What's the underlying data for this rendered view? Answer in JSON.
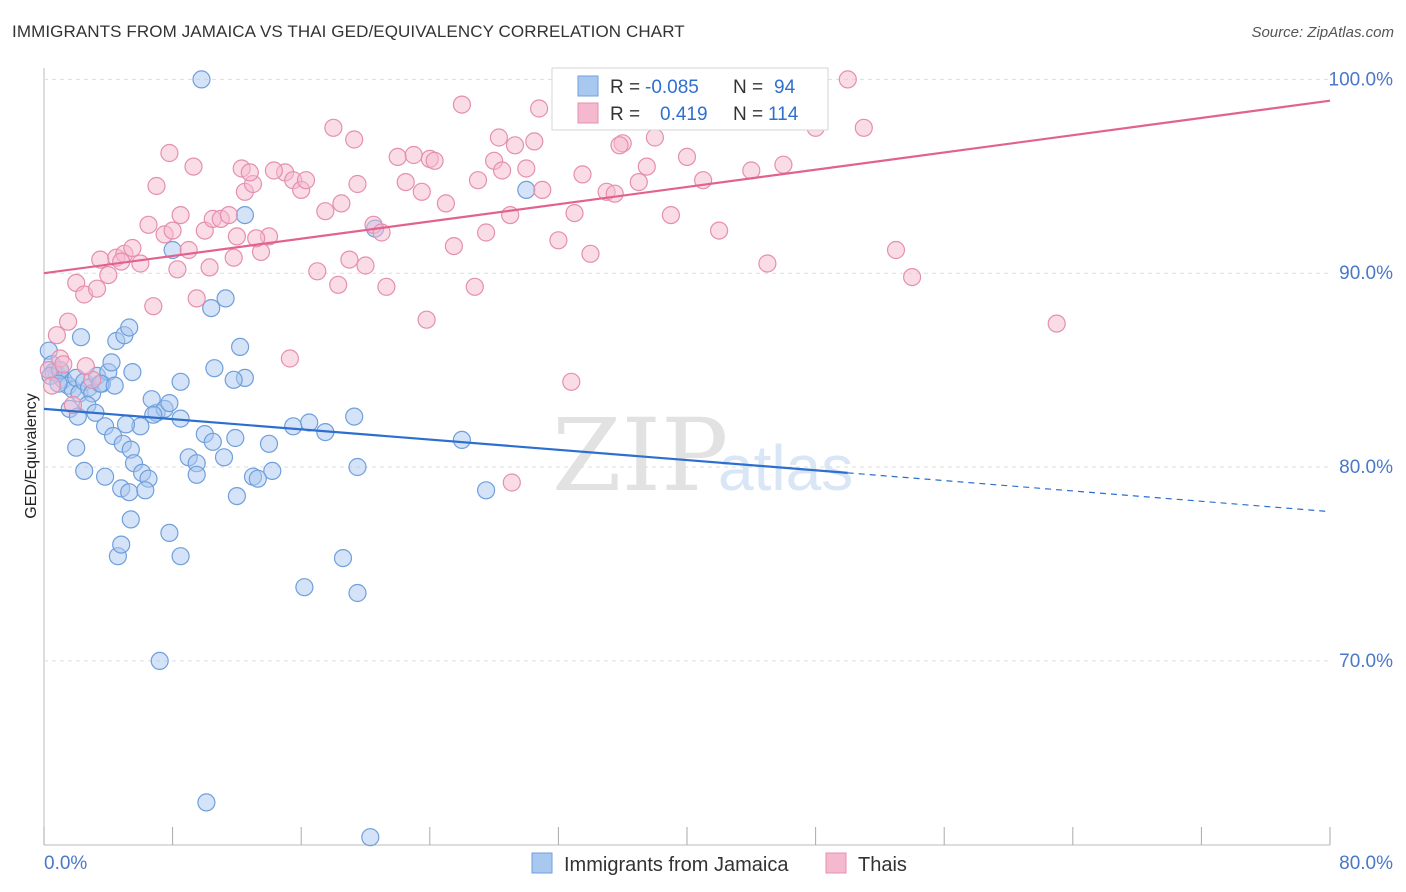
{
  "header": {
    "title": "IMMIGRANTS FROM JAMAICA VS THAI GED/EQUIVALENCY CORRELATION CHART",
    "source": "Source: ZipAtlas.com"
  },
  "colors": {
    "blue_fill": "#a9c8f0",
    "blue_stroke": "#6f9fdc",
    "blue_line": "#2d6fce",
    "pink_fill": "#f5b9cf",
    "pink_stroke": "#e58fae",
    "pink_line": "#e2628f",
    "tick_text": "#4a78c8",
    "grid": "#dddddd"
  },
  "legend_top": {
    "row1": {
      "r_label": "R =",
      "r_value": "-0.085",
      "n_label": "N =",
      "n_value": "94"
    },
    "row2": {
      "r_label": "R =",
      "r_value": "0.419",
      "n_label": "N =",
      "n_value": "114"
    }
  },
  "legend_bottom": {
    "series1": "Immigrants from Jamaica",
    "series2": "Thais"
  },
  "watermark": {
    "zip": "ZIP",
    "atlas": "atlas"
  },
  "chart_data": {
    "type": "scatter",
    "title": "IMMIGRANTS FROM JAMAICA VS THAI GED/EQUIVALENCY CORRELATION CHART",
    "xlabel": "",
    "ylabel": "GED/Equivalency",
    "xlim": [
      0,
      80
    ],
    "ylim": [
      60.5,
      101
    ],
    "x_tick_labels": [
      "0.0%",
      "80.0%"
    ],
    "y_ticks": [
      70,
      80,
      90,
      100
    ],
    "y_tick_labels": [
      "70.0%",
      "80.0%",
      "90.0%",
      "100.0%"
    ],
    "grid": "horizontal dashed",
    "legend": "top-center and bottom-center",
    "series": [
      {
        "name": "Immigrants from Jamaica",
        "color": "#a9c8f0",
        "trend": {
          "x": [
            0,
            50
          ],
          "y": [
            83.0,
            79.7
          ],
          "dashed_to": [
            80,
            77.7
          ]
        },
        "points": [
          [
            0.3,
            86.0
          ],
          [
            0.5,
            85.3
          ],
          [
            0.8,
            84.8
          ],
          [
            1.0,
            85.0
          ],
          [
            1.2,
            84.5
          ],
          [
            0.6,
            84.9
          ],
          [
            1.5,
            84.2
          ],
          [
            1.8,
            84.0
          ],
          [
            2.0,
            84.6
          ],
          [
            2.2,
            83.8
          ],
          [
            2.5,
            84.4
          ],
          [
            2.8,
            84.1
          ],
          [
            3.0,
            83.8
          ],
          [
            3.3,
            84.7
          ],
          [
            3.6,
            84.3
          ],
          [
            4.0,
            84.9
          ],
          [
            4.2,
            85.4
          ],
          [
            4.5,
            86.5
          ],
          [
            5.0,
            86.8
          ],
          [
            5.3,
            87.2
          ],
          [
            2.3,
            86.7
          ],
          [
            3.5,
            84.3
          ],
          [
            4.4,
            84.2
          ],
          [
            5.5,
            84.9
          ],
          [
            0.4,
            84.7
          ],
          [
            1.0,
            85.0
          ],
          [
            1.6,
            83.0
          ],
          [
            2.1,
            82.6
          ],
          [
            2.7,
            83.2
          ],
          [
            3.2,
            82.8
          ],
          [
            3.8,
            82.1
          ],
          [
            4.3,
            81.6
          ],
          [
            4.9,
            81.2
          ],
          [
            5.4,
            80.9
          ],
          [
            5.6,
            80.2
          ],
          [
            6.1,
            79.7
          ],
          [
            6.5,
            79.4
          ],
          [
            7.0,
            82.8
          ],
          [
            7.5,
            83.0
          ],
          [
            7.8,
            83.3
          ],
          [
            8.5,
            84.4
          ],
          [
            9.0,
            80.5
          ],
          [
            9.5,
            80.2
          ],
          [
            10.0,
            81.7
          ],
          [
            10.5,
            81.3
          ],
          [
            11.2,
            80.5
          ],
          [
            12.0,
            78.5
          ],
          [
            12.5,
            84.6
          ],
          [
            13.0,
            79.5
          ],
          [
            14.0,
            81.2
          ],
          [
            15.5,
            82.1
          ],
          [
            19.5,
            80.0
          ],
          [
            26.0,
            81.4
          ],
          [
            27.5,
            78.8
          ],
          [
            2.0,
            81.0
          ],
          [
            2.5,
            79.8
          ],
          [
            3.8,
            79.5
          ],
          [
            4.8,
            78.9
          ],
          [
            5.4,
            77.3
          ],
          [
            4.6,
            75.4
          ],
          [
            4.8,
            76.0
          ],
          [
            5.3,
            78.7
          ],
          [
            6.3,
            78.8
          ],
          [
            7.8,
            76.6
          ],
          [
            8.5,
            75.4
          ],
          [
            11.8,
            84.5
          ],
          [
            12.2,
            86.2
          ],
          [
            14.2,
            79.8
          ],
          [
            16.2,
            73.8
          ],
          [
            18.6,
            75.3
          ],
          [
            19.5,
            73.5
          ],
          [
            7.2,
            70.0
          ],
          [
            10.1,
            62.7
          ],
          [
            20.3,
            60.9
          ],
          [
            10.6,
            85.1
          ],
          [
            11.3,
            88.7
          ],
          [
            10.4,
            88.2
          ],
          [
            8.0,
            91.2
          ],
          [
            12.5,
            93.0
          ],
          [
            20.6,
            92.3
          ],
          [
            13.3,
            79.4
          ],
          [
            11.9,
            81.5
          ],
          [
            6.0,
            82.1
          ],
          [
            6.7,
            83.5
          ],
          [
            5.1,
            82.2
          ],
          [
            0.9,
            84.3
          ],
          [
            9.5,
            79.6
          ],
          [
            8.5,
            82.5
          ],
          [
            16.5,
            82.3
          ],
          [
            17.5,
            81.8
          ],
          [
            19.3,
            82.6
          ],
          [
            30.0,
            94.3
          ],
          [
            6.8,
            82.7
          ],
          [
            9.8,
            100.0
          ]
        ]
      },
      {
        "name": "Thais",
        "color": "#f5b9cf",
        "trend": {
          "x": [
            0,
            80
          ],
          "y": [
            90.0,
            98.9
          ]
        },
        "points": [
          [
            0.3,
            85.0
          ],
          [
            0.5,
            84.2
          ],
          [
            0.8,
            86.8
          ],
          [
            1.0,
            85.6
          ],
          [
            1.2,
            85.3
          ],
          [
            1.5,
            87.5
          ],
          [
            2.0,
            89.5
          ],
          [
            2.5,
            88.9
          ],
          [
            3.0,
            84.5
          ],
          [
            3.5,
            90.7
          ],
          [
            4.0,
            89.9
          ],
          [
            4.5,
            90.8
          ],
          [
            5.0,
            91.0
          ],
          [
            5.5,
            91.3
          ],
          [
            6.0,
            90.5
          ],
          [
            6.5,
            92.5
          ],
          [
            7.0,
            94.5
          ],
          [
            7.5,
            92.0
          ],
          [
            8.0,
            92.2
          ],
          [
            8.5,
            93.0
          ],
          [
            9.0,
            91.2
          ],
          [
            9.5,
            88.7
          ],
          [
            10.0,
            92.2
          ],
          [
            10.5,
            92.8
          ],
          [
            11.0,
            92.8
          ],
          [
            11.5,
            93.0
          ],
          [
            12.0,
            91.9
          ],
          [
            12.5,
            94.2
          ],
          [
            13.0,
            94.6
          ],
          [
            13.5,
            91.1
          ],
          [
            14.0,
            91.9
          ],
          [
            15.0,
            95.2
          ],
          [
            15.5,
            94.8
          ],
          [
            16.0,
            94.3
          ],
          [
            17.0,
            90.1
          ],
          [
            17.5,
            93.2
          ],
          [
            18.0,
            97.5
          ],
          [
            18.5,
            93.6
          ],
          [
            19.0,
            90.7
          ],
          [
            19.5,
            94.6
          ],
          [
            20.0,
            90.4
          ],
          [
            20.5,
            92.5
          ],
          [
            21.0,
            92.1
          ],
          [
            22.0,
            96.0
          ],
          [
            22.5,
            94.7
          ],
          [
            23.0,
            96.1
          ],
          [
            23.5,
            94.2
          ],
          [
            24.0,
            95.9
          ],
          [
            25.0,
            93.6
          ],
          [
            25.5,
            91.4
          ],
          [
            26.0,
            98.7
          ],
          [
            27.0,
            94.8
          ],
          [
            27.5,
            92.1
          ],
          [
            28.0,
            95.8
          ],
          [
            28.5,
            95.3
          ],
          [
            29.0,
            93.0
          ],
          [
            30.0,
            95.4
          ],
          [
            30.5,
            96.8
          ],
          [
            31.0,
            94.3
          ],
          [
            32.0,
            91.7
          ],
          [
            33.0,
            93.1
          ],
          [
            33.5,
            95.1
          ],
          [
            34.0,
            91.0
          ],
          [
            35.0,
            94.2
          ],
          [
            35.5,
            94.1
          ],
          [
            36.0,
            96.7
          ],
          [
            37.0,
            94.7
          ],
          [
            37.5,
            95.5
          ],
          [
            38.0,
            97.0
          ],
          [
            39.0,
            93.0
          ],
          [
            40.0,
            96.0
          ],
          [
            41.0,
            94.8
          ],
          [
            42.0,
            92.2
          ],
          [
            43.0,
            98.4
          ],
          [
            44.0,
            95.3
          ],
          [
            45.0,
            90.5
          ],
          [
            46.0,
            95.6
          ],
          [
            47.0,
            98.0
          ],
          [
            48.0,
            97.5
          ],
          [
            50.0,
            100.0
          ],
          [
            51.0,
            97.5
          ],
          [
            53.0,
            91.2
          ],
          [
            54.0,
            89.8
          ],
          [
            63.0,
            87.4
          ],
          [
            1.8,
            83.2
          ],
          [
            2.6,
            85.2
          ],
          [
            3.3,
            89.2
          ],
          [
            4.8,
            90.6
          ],
          [
            6.8,
            88.3
          ],
          [
            8.3,
            90.2
          ],
          [
            10.3,
            90.3
          ],
          [
            11.8,
            90.8
          ],
          [
            13.2,
            91.8
          ],
          [
            15.3,
            85.6
          ],
          [
            16.3,
            94.8
          ],
          [
            18.3,
            89.4
          ],
          [
            21.3,
            89.3
          ],
          [
            23.8,
            87.6
          ],
          [
            26.8,
            89.3
          ],
          [
            28.3,
            97.0
          ],
          [
            33.3,
            98.3
          ],
          [
            39.3,
            98.6
          ],
          [
            30.8,
            98.5
          ],
          [
            35.8,
            96.6
          ],
          [
            29.3,
            96.6
          ],
          [
            14.3,
            95.3
          ],
          [
            12.3,
            95.4
          ],
          [
            19.3,
            96.9
          ],
          [
            24.3,
            95.8
          ],
          [
            9.3,
            95.5
          ],
          [
            7.8,
            96.2
          ],
          [
            12.8,
            95.2
          ],
          [
            32.8,
            84.4
          ],
          [
            29.1,
            79.2
          ]
        ]
      }
    ]
  }
}
